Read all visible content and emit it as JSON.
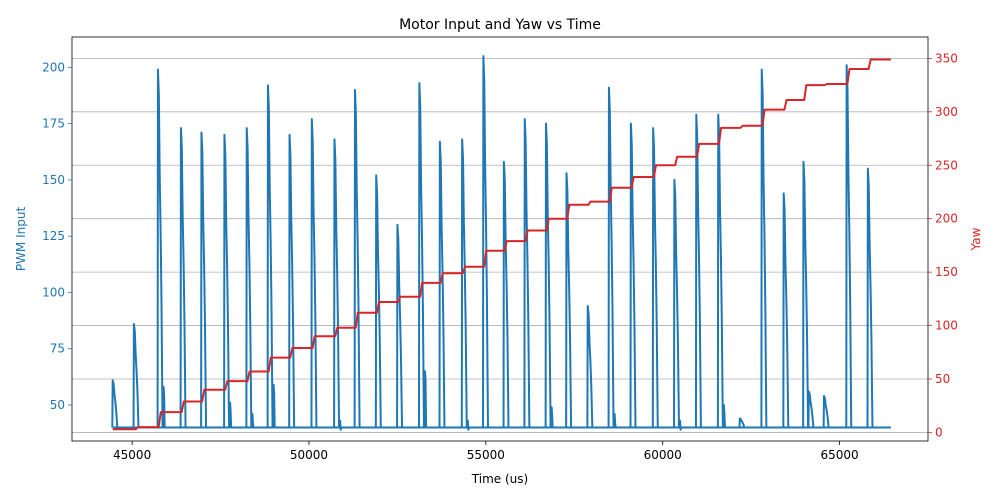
{
  "chart_data": {
    "type": "line",
    "title": "Motor Input and Yaw vs Time",
    "xlabel": "Time (us)",
    "ylabel_left": "PWM Input",
    "ylabel_right": "Yaw",
    "xlim": [
      43300,
      67500
    ],
    "ylim_left": [
      34,
      213.5
    ],
    "ylim_right": [
      -8,
      370
    ],
    "x_ticks": [
      45000,
      50000,
      55000,
      60000,
      65000
    ],
    "y_ticks_left": [
      50,
      75,
      100,
      125,
      150,
      175,
      200
    ],
    "y_ticks_right": [
      0,
      50,
      100,
      150,
      200,
      250,
      300,
      350
    ],
    "grid": "horizontal lines at right-axis ticks",
    "colors": {
      "pwm": "#1f77b4",
      "yaw": "#d62728",
      "grid": "#b0b0b0",
      "text": "#000000"
    },
    "series": [
      {
        "name": "PWM Input",
        "axis": "left",
        "baseline": 40,
        "pulses": [
          {
            "t": 44450,
            "peak": 61
          },
          {
            "t": 45050,
            "peak": 86
          },
          {
            "t": 45730,
            "peak": 199,
            "echo": 58
          },
          {
            "t": 46380,
            "peak": 173
          },
          {
            "t": 46960,
            "peak": 171
          },
          {
            "t": 47610,
            "peak": 170,
            "echo": 51
          },
          {
            "t": 48240,
            "peak": 173,
            "echo": 46
          },
          {
            "t": 48840,
            "peak": 192,
            "echo": 59
          },
          {
            "t": 49450,
            "peak": 170
          },
          {
            "t": 50080,
            "peak": 177
          },
          {
            "t": 50720,
            "peak": 168,
            "echo": 43
          },
          {
            "t": 51300,
            "peak": 190
          },
          {
            "t": 51900,
            "peak": 152
          },
          {
            "t": 52500,
            "peak": 130
          },
          {
            "t": 53120,
            "peak": 193,
            "echo": 65
          },
          {
            "t": 53700,
            "peak": 167
          },
          {
            "t": 54330,
            "peak": 168,
            "echo": 43
          },
          {
            "t": 54930,
            "peak": 205
          },
          {
            "t": 55510,
            "peak": 158
          },
          {
            "t": 56100,
            "peak": 177
          },
          {
            "t": 56700,
            "peak": 175,
            "echo": 49
          },
          {
            "t": 57280,
            "peak": 153
          },
          {
            "t": 57880,
            "peak": 94
          },
          {
            "t": 58480,
            "peak": 191,
            "echo": 46
          },
          {
            "t": 59100,
            "peak": 175
          },
          {
            "t": 59730,
            "peak": 173
          },
          {
            "t": 60330,
            "peak": 150,
            "echo": 43
          },
          {
            "t": 60950,
            "peak": 179
          },
          {
            "t": 61570,
            "peak": 179,
            "echo": 50
          },
          {
            "t": 62180,
            "peak": 44
          },
          {
            "t": 62800,
            "peak": 199
          },
          {
            "t": 63420,
            "peak": 144
          },
          {
            "t": 63980,
            "peak": 158
          },
          {
            "t": 64130,
            "peak": 56
          },
          {
            "t": 64560,
            "peak": 54
          },
          {
            "t": 65200,
            "peak": 201
          },
          {
            "t": 65800,
            "peak": 155
          }
        ],
        "end_x": 66450
      },
      {
        "name": "Yaw",
        "axis": "right",
        "start_x": 44450,
        "end_x": 66450,
        "steps": [
          {
            "t": 44450,
            "v": 3
          },
          {
            "t": 45100,
            "v": 5
          },
          {
            "t": 45750,
            "v": 19
          },
          {
            "t": 46400,
            "v": 29
          },
          {
            "t": 46980,
            "v": 40
          },
          {
            "t": 47630,
            "v": 48
          },
          {
            "t": 48260,
            "v": 57
          },
          {
            "t": 48860,
            "v": 70
          },
          {
            "t": 49470,
            "v": 79
          },
          {
            "t": 50100,
            "v": 90
          },
          {
            "t": 50740,
            "v": 98
          },
          {
            "t": 51320,
            "v": 112
          },
          {
            "t": 51920,
            "v": 122
          },
          {
            "t": 52520,
            "v": 127
          },
          {
            "t": 53140,
            "v": 140
          },
          {
            "t": 53720,
            "v": 149
          },
          {
            "t": 54350,
            "v": 155
          },
          {
            "t": 54950,
            "v": 170
          },
          {
            "t": 55530,
            "v": 179
          },
          {
            "t": 56120,
            "v": 189
          },
          {
            "t": 56720,
            "v": 200
          },
          {
            "t": 57300,
            "v": 213
          },
          {
            "t": 57900,
            "v": 216
          },
          {
            "t": 58500,
            "v": 229
          },
          {
            "t": 59120,
            "v": 239
          },
          {
            "t": 59750,
            "v": 250
          },
          {
            "t": 60350,
            "v": 258
          },
          {
            "t": 60970,
            "v": 270
          },
          {
            "t": 61590,
            "v": 285
          },
          {
            "t": 62200,
            "v": 287
          },
          {
            "t": 62820,
            "v": 302
          },
          {
            "t": 63440,
            "v": 311
          },
          {
            "t": 64000,
            "v": 325
          },
          {
            "t": 64580,
            "v": 326
          },
          {
            "t": 65220,
            "v": 340
          },
          {
            "t": 65820,
            "v": 349
          }
        ]
      }
    ]
  }
}
